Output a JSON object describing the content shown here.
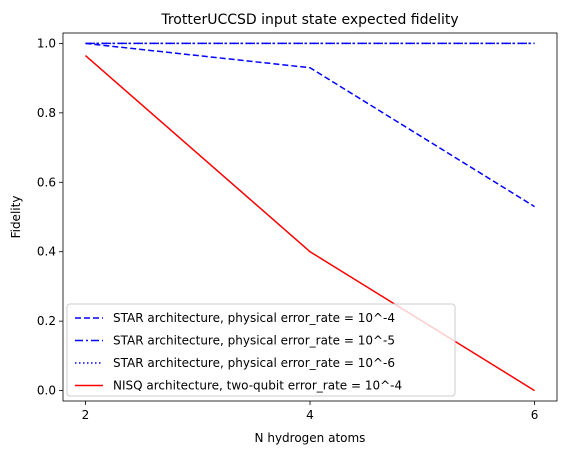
{
  "chart_data": {
    "type": "line",
    "title": "TrotterUCCSD input state expected fidelity",
    "xlabel": "N hydrogen atoms",
    "ylabel": "Fidelity",
    "x": [
      2,
      4,
      6
    ],
    "xlim": [
      1.8,
      6.2
    ],
    "ylim": [
      -0.03,
      1.03
    ],
    "xticks": [
      2,
      4,
      6
    ],
    "yticks": [
      0.0,
      0.2,
      0.4,
      0.6,
      0.8,
      1.0
    ],
    "xtick_labels": [
      "2",
      "4",
      "6"
    ],
    "ytick_labels": [
      "0.0",
      "0.2",
      "0.4",
      "0.6",
      "0.8",
      "1.0"
    ],
    "grid": false,
    "legend_position": "lower-left",
    "series": [
      {
        "name": "STAR architecture, physical error_rate = 10^-4",
        "values": [
          1.0,
          0.93,
          0.53
        ],
        "color": "#0000ff",
        "dash": "dashed"
      },
      {
        "name": "STAR architecture, physical error_rate = 10^-5",
        "values": [
          1.0,
          1.0,
          1.0
        ],
        "color": "#0000ff",
        "dash": "dashdot"
      },
      {
        "name": "STAR architecture, physical error_rate = 10^-6",
        "values": [
          1.0,
          1.0,
          1.0
        ],
        "color": "#0000ff",
        "dash": "dotted"
      },
      {
        "name": "NISQ architecture, two-qubit error_rate = 10^-4",
        "values": [
          0.965,
          0.4,
          0.0
        ],
        "color": "#ff0000",
        "dash": "solid"
      }
    ]
  }
}
